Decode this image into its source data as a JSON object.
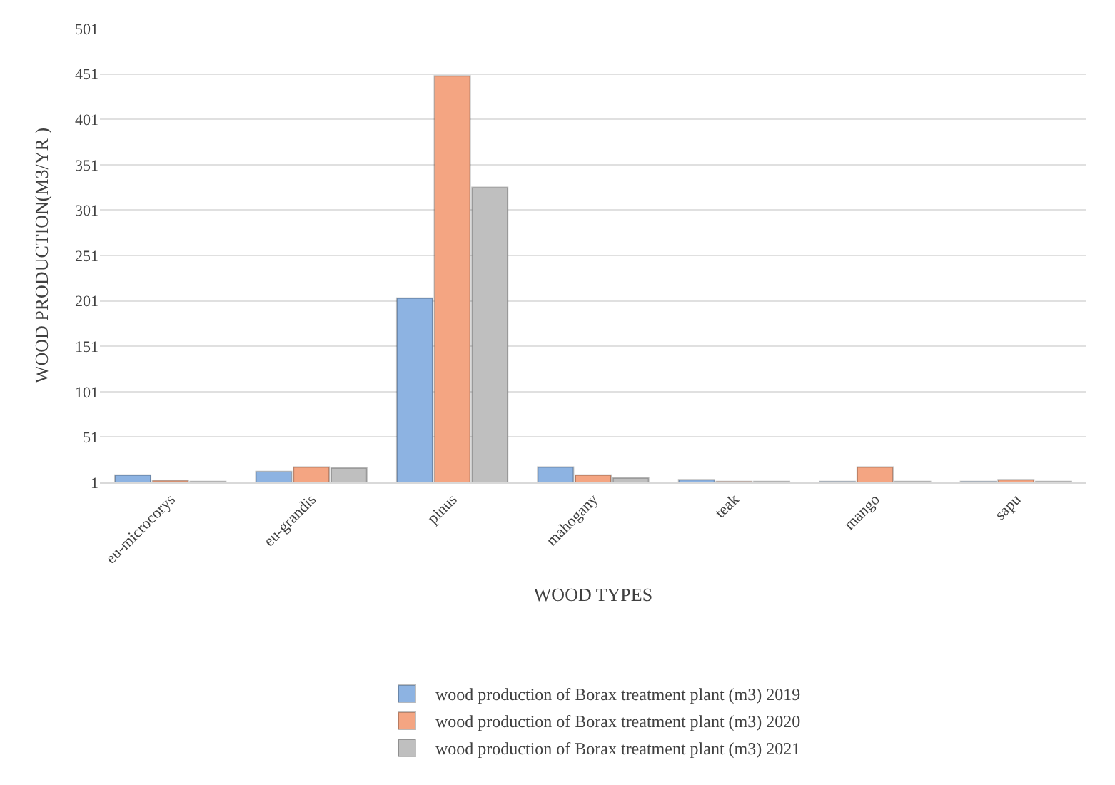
{
  "chart_data": {
    "type": "bar",
    "xlabel": "WOOD TYPES",
    "ylabel": "WOOD PRODUCTION(M3/YR )",
    "categories": [
      "eu-microcorys",
      "eu-grandis",
      "pinus",
      "mahogany",
      "teak",
      "mango",
      "sapu"
    ],
    "series": [
      {
        "name": "wood production of Borax treatment plant (m3) 2019",
        "color": "#8db3e2",
        "values": [
          9,
          13,
          204,
          18,
          4,
          2,
          2
        ]
      },
      {
        "name": "wood production of Borax treatment plant (m3) 2020",
        "color": "#f4a582",
        "values": [
          3,
          18,
          449,
          9,
          2,
          18,
          4
        ]
      },
      {
        "name": "wood production of Borax treatment plant (m3) 2021",
        "color": "#bfbfbf",
        "values": [
          2,
          17,
          326,
          6,
          2,
          2,
          2
        ]
      }
    ],
    "ylim": [
      1,
      501
    ],
    "yticks": [
      1,
      51,
      101,
      151,
      201,
      251,
      301,
      351,
      401,
      451,
      501
    ],
    "grid": "y",
    "legend": "bottom"
  }
}
